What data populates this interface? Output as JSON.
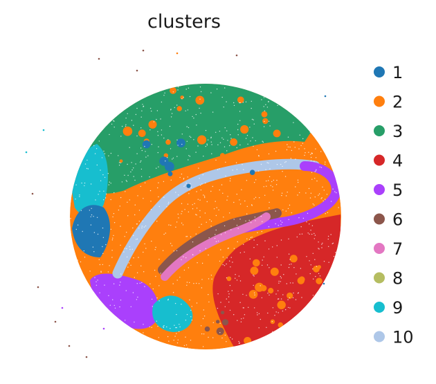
{
  "chart_data": {
    "type": "scatter",
    "title": "clusters",
    "xlabel": "",
    "ylabel": "",
    "grid": false,
    "axes_visible": false,
    "legend_placement": "right",
    "series": [
      {
        "name": "1",
        "color": "#1f77b4"
      },
      {
        "name": "2",
        "color": "#ff7f0e"
      },
      {
        "name": "3",
        "color": "#279e68"
      },
      {
        "name": "4",
        "color": "#d62728"
      },
      {
        "name": "5",
        "color": "#aa40fc"
      },
      {
        "name": "6",
        "color": "#8c564b"
      },
      {
        "name": "7",
        "color": "#e377c2"
      },
      {
        "name": "8",
        "color": "#b5bd61"
      },
      {
        "name": "9",
        "color": "#17becf"
      },
      {
        "name": "10",
        "color": "#aec7e8"
      }
    ],
    "description_of_regions": "circular tissue section; cluster 2 (orange) dominant background, cluster 3 (green) top, band of cluster 10 (light blue) arcing diagonally, cluster 5 (purple) at right arc end and lower-left blob, cluster 7 (pink) inner arc, cluster 4 (red) lower right, cluster 9 (cyan) left edge and bottom, cluster 1 (blue) left edge, cluster 6 (brown) scattered"
  }
}
